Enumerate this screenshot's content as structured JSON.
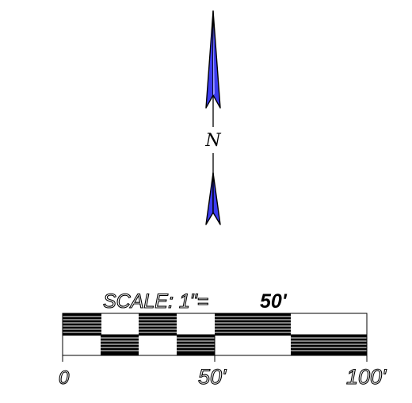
{
  "north_arrow": {
    "letter": "N",
    "fill_color": "#3b3bf0",
    "highlight_color": "#9a9aff",
    "outline_color": "#000000"
  },
  "scale_bar": {
    "title_prefix": "SCALE:  1\"=",
    "title_value": "50'",
    "labels": {
      "zero": "0",
      "mid": "50'",
      "end": "100'"
    },
    "colors": {
      "line": "#000000",
      "background": "#ffffff"
    }
  }
}
